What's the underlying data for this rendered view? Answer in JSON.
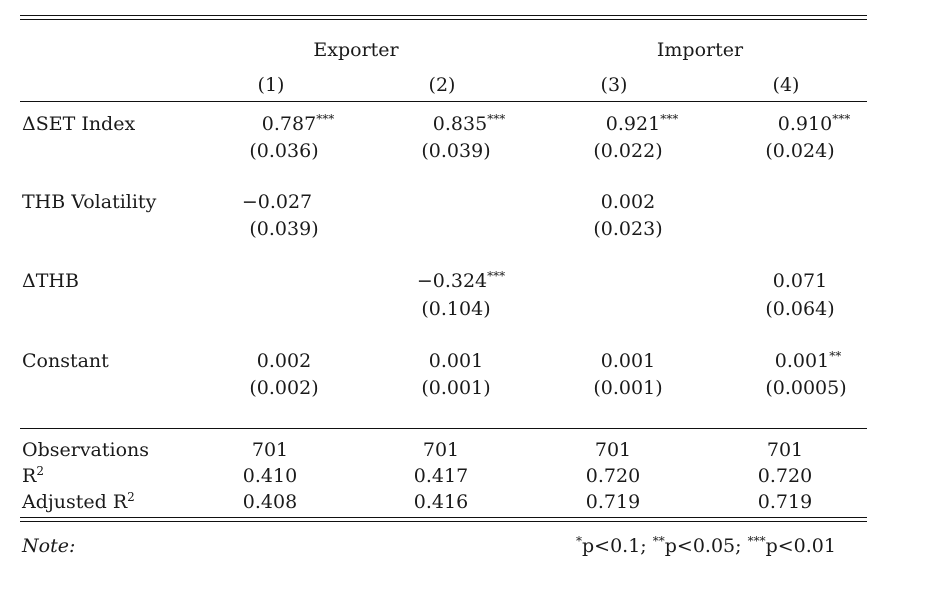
{
  "table": {
    "groups": [
      "Exporter",
      "Importer"
    ],
    "columns": [
      "(1)",
      "(2)",
      "(3)",
      "(4)"
    ],
    "rows": [
      {
        "label": "ΔSET Index",
        "coef": [
          "0.787***",
          "0.835***",
          "0.921***",
          "0.910***"
        ],
        "se": [
          "(0.036)",
          "(0.039)",
          "(0.022)",
          "(0.024)"
        ]
      },
      {
        "label": "THB Volatility",
        "coef": [
          "−0.027",
          "",
          "0.002",
          ""
        ],
        "se": [
          "(0.039)",
          "",
          "(0.023)",
          ""
        ]
      },
      {
        "label": "ΔTHB",
        "coef": [
          "",
          "−0.324***",
          "",
          "0.071"
        ],
        "se": [
          "",
          "(0.104)",
          "",
          "(0.064)"
        ]
      },
      {
        "label": "Constant",
        "coef": [
          "0.002",
          "0.001",
          "0.001",
          "0.001**"
        ],
        "se": [
          "(0.002)",
          "(0.001)",
          "(0.001)",
          "(0.0005)"
        ]
      }
    ],
    "stats": [
      {
        "label": "Observations",
        "values": [
          "701",
          "701",
          "701",
          "701"
        ]
      },
      {
        "label": "R²",
        "values": [
          "0.410",
          "0.417",
          "0.720",
          "0.720"
        ]
      },
      {
        "label": "Adjusted R²",
        "values": [
          "0.408",
          "0.416",
          "0.719",
          "0.719"
        ]
      }
    ],
    "note_label": "Note:",
    "note_text": "*p<0.1; **p<0.05; ***p<0.01"
  }
}
